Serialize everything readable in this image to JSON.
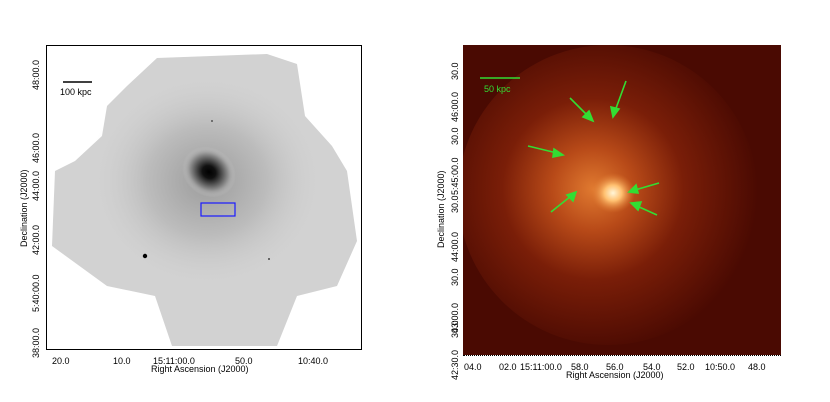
{
  "left_panel": {
    "xlabel": "Right Ascension (J2000)",
    "ylabel": "Declination (J2000)",
    "xticks": [
      "20.0",
      "10.0",
      "15:11:00.0",
      "50.0",
      "10:40.0"
    ],
    "yticks": [
      "48:00.0",
      "46:00.0",
      "44:00.0",
      "42:00.0",
      "5:40:00.0",
      "38:00.0"
    ],
    "scale_bar_label": "100 kpc",
    "colors": {
      "box": "#1a1aff",
      "image": "grayscale"
    }
  },
  "right_panel": {
    "xlabel": "Right Ascension (J2000)",
    "ylabel": "Declination (J2000)",
    "xticks": [
      "04.0",
      "02.0",
      "15:11:00.0",
      "58.0",
      "56.0",
      "54.0",
      "52.0",
      "10:50.0",
      "48.0"
    ],
    "yticks": [
      "30.0",
      "46:00.0",
      "30.0",
      "5:45:00.0",
      "30.0",
      "44:00.0",
      "30.0",
      "43:00.0",
      "30.0",
      "42:30.0"
    ],
    "scale_bar_label": "50 kpc",
    "colors": {
      "arrows": "#33dd33",
      "scale": "#33dd33",
      "background": "#4a0a02",
      "core": "#ffe0a0"
    }
  }
}
